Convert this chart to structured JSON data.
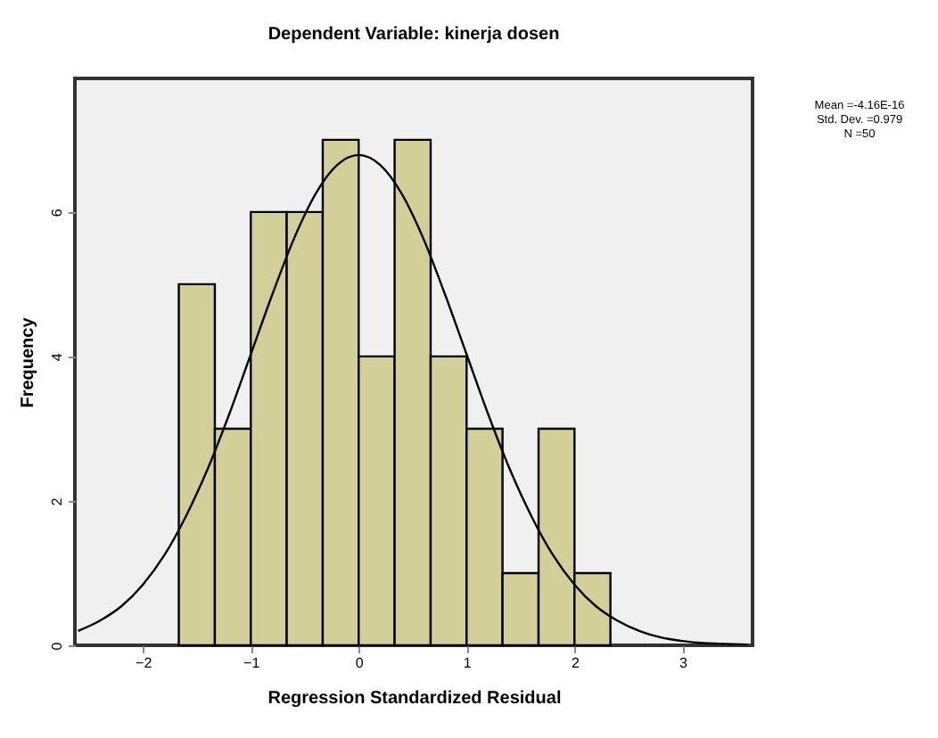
{
  "chart_data": {
    "type": "histogram",
    "title": "Dependent Variable: kinerja dosen",
    "xlabel": "Regression Standardized Residual",
    "ylabel": "Frequency",
    "annotations": [
      "Mean =-4.16E-16",
      "Std. Dev. =0.979",
      "N =50"
    ],
    "series": [
      {
        "type": "histogram",
        "color": "#d3cf98",
        "bins": [
          -1.667,
          -1.333,
          -1,
          -0.667,
          -0.333,
          0,
          0.333,
          0.667,
          1,
          1.333,
          1.667,
          2,
          2.333
        ],
        "values": [
          5,
          3,
          6,
          6,
          7,
          4,
          7,
          4,
          3,
          1,
          3,
          1
        ]
      },
      {
        "type": "line",
        "color": "#000000",
        "x": [
          -2.6,
          -2.4,
          -2.2,
          -2,
          -1.8,
          -1.6,
          -1.4,
          -1.2,
          -1,
          -0.8,
          -0.6,
          -0.4,
          -0.2,
          0,
          0.2,
          0.4,
          0.6,
          0.8,
          1,
          1.2,
          1.4,
          1.6,
          1.8,
          2,
          2.2,
          2.4,
          2.6,
          2.8,
          3,
          3.2,
          3.4,
          3.6
        ],
        "values": [
          0.2,
          0.34,
          0.54,
          0.84,
          1.25,
          1.79,
          2.44,
          3.2,
          4.03,
          4.86,
          5.63,
          6.25,
          6.65,
          6.79,
          6.65,
          6.25,
          5.63,
          4.86,
          4.03,
          3.2,
          2.44,
          1.79,
          1.25,
          0.84,
          0.54,
          0.34,
          0.2,
          0.11,
          0.06,
          0.03,
          0.02,
          0.01
        ]
      }
    ],
    "xlim": [
      -2.63,
      3.65
    ],
    "xticks": [
      -2,
      -1,
      0,
      1,
      2,
      3
    ],
    "ylim": [
      0,
      7.85
    ],
    "yticks": [
      0,
      2,
      4,
      6
    ],
    "grid": false,
    "marker": "none",
    "line_style": "solid"
  }
}
